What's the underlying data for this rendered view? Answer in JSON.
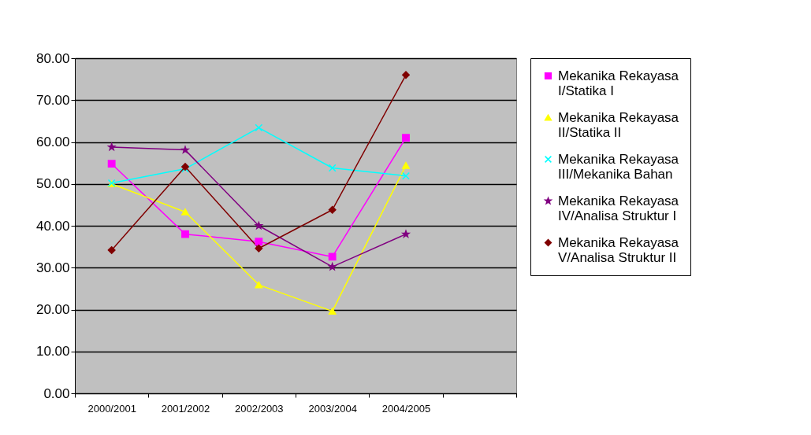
{
  "chart_data": {
    "type": "line",
    "categories": [
      "2000/2001",
      "2001/2002",
      "2002/2003",
      "2003/2004",
      "2004/2005",
      null
    ],
    "ylim": [
      0,
      80
    ],
    "yticks": [
      {
        "value": 0,
        "label": "0.00"
      },
      {
        "value": 10,
        "label": "10.00"
      },
      {
        "value": 20,
        "label": "20.00"
      },
      {
        "value": 30,
        "label": "30.00"
      },
      {
        "value": 40,
        "label": "40.00"
      },
      {
        "value": 50,
        "label": "50.00"
      },
      {
        "value": 60,
        "label": "60.00"
      },
      {
        "value": 70,
        "label": "70.00"
      },
      {
        "value": 80,
        "label": "80.00"
      }
    ],
    "grid": "y",
    "legend": "right",
    "line_style": "solid",
    "series": [
      {
        "name": "Mekanika Rekayasa I/Statika I",
        "color": "#ff00ff",
        "marker": "square",
        "values": [
          54.8,
          38.0,
          36.2,
          32.6,
          61.0,
          null
        ]
      },
      {
        "name": "Mekanika Rekayasa II/Statika II",
        "color": "#ffff00",
        "marker": "triangle",
        "values": [
          50.0,
          43.3,
          25.9,
          19.6,
          54.4,
          null
        ]
      },
      {
        "name": "Mekanika Rekayasa III/Mekanika Bahan",
        "color": "#00ffff",
        "marker": "cross",
        "values": [
          50.2,
          53.6,
          63.4,
          53.8,
          51.9,
          null
        ]
      },
      {
        "name": "Mekanika Rekayasa IV/Analisa Struktur I",
        "color": "#800080",
        "marker": "star",
        "values": [
          58.8,
          58.1,
          40.0,
          30.2,
          38.0,
          null
        ]
      },
      {
        "name": "Mekanika Rekayasa V/Analisa Struktur II",
        "color": "#800000",
        "marker": "diamond",
        "values": [
          34.2,
          54.1,
          34.6,
          43.8,
          76.0,
          null
        ]
      }
    ]
  }
}
